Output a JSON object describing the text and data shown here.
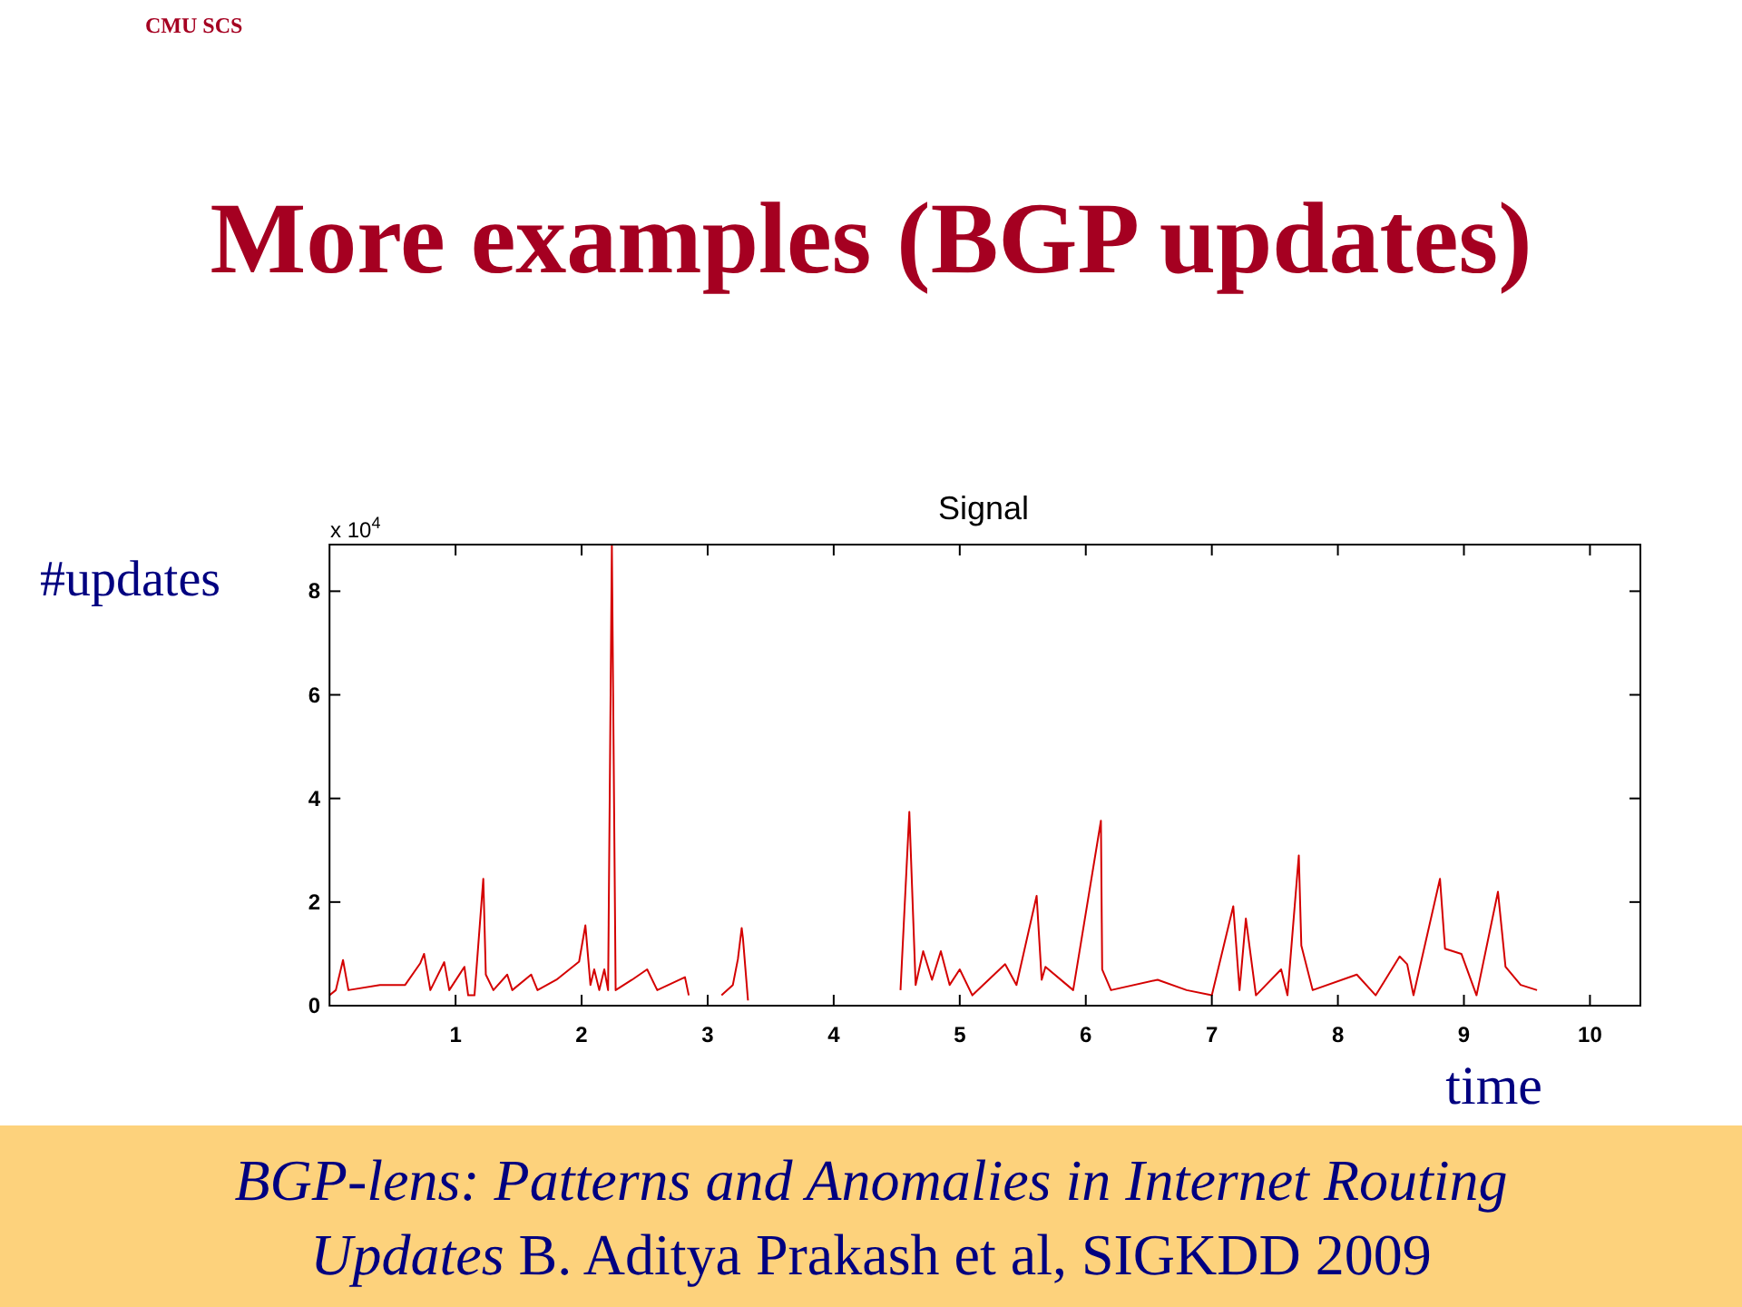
{
  "chart_data": {
    "type": "line",
    "title": "Signal",
    "subtitle": "More examples (BGP updates)",
    "xlabel": "time",
    "ylabel": "#updates",
    "x": [
      0.0,
      0.05,
      0.107,
      0.15,
      0.4,
      0.6,
      0.72,
      0.75,
      0.8,
      0.91,
      0.95,
      1.07,
      1.1,
      1.15,
      1.22,
      1.24,
      1.3,
      1.41,
      1.45,
      1.6,
      1.65,
      1.8,
      1.98,
      2.03,
      2.07,
      2.1,
      2.14,
      2.18,
      2.21,
      2.24,
      2.27,
      2.4,
      2.52,
      2.6,
      2.82,
      2.85,
      2.95,
      3.11,
      3.2,
      3.24,
      3.27,
      3.28,
      3.32,
      4.0,
      4.53,
      4.6,
      4.65,
      4.71,
      4.78,
      4.85,
      4.92,
      5.0,
      5.1,
      5.36,
      5.45,
      5.61,
      5.65,
      5.68,
      5.9,
      6.12,
      6.13,
      6.2,
      6.57,
      6.8,
      7.0,
      7.17,
      7.22,
      7.27,
      7.35,
      7.55,
      7.6,
      7.69,
      7.71,
      7.8,
      8.15,
      8.3,
      8.49,
      8.55,
      8.6,
      8.81,
      8.85,
      8.98,
      9.1,
      9.27,
      9.33,
      9.45,
      9.58
    ],
    "series": [
      {
        "color": "#d40000",
        "values": [
          0.2,
          0.3,
          0.88,
          0.3,
          0.4,
          0.4,
          0.82,
          1.0,
          0.3,
          0.84,
          0.3,
          0.75,
          0.2,
          0.2,
          2.45,
          0.6,
          0.3,
          0.6,
          0.3,
          0.6,
          0.3,
          0.5,
          0.85,
          1.55,
          0.4,
          0.7,
          0.3,
          0.7,
          0.3,
          8.9,
          0.3,
          0.5,
          0.7,
          0.3,
          0.55,
          0.2,
          null,
          0.2,
          0.4,
          0.9,
          1.5,
          1.3,
          0.1,
          null,
          0.3,
          3.74,
          0.4,
          1.05,
          0.5,
          1.05,
          0.4,
          0.7,
          0.2,
          0.8,
          0.4,
          2.12,
          0.5,
          0.75,
          0.3,
          3.57,
          0.7,
          0.3,
          0.5,
          0.3,
          0.2,
          1.92,
          0.3,
          1.68,
          0.2,
          0.7,
          0.2,
          2.9,
          1.16,
          0.3,
          0.6,
          0.2,
          0.95,
          0.8,
          0.2,
          2.45,
          1.1,
          1.0,
          0.2,
          2.2,
          0.75,
          0.4,
          0.3
        ]
      }
    ],
    "xlim": [
      0,
      10.4
    ],
    "ylim": [
      0,
      8.9
    ],
    "xticks": [
      1,
      2,
      3,
      4,
      5,
      6,
      7,
      8,
      9,
      10
    ],
    "yticks": [
      0,
      2,
      4,
      6,
      8
    ],
    "grid": false,
    "annotations": [
      "CMU SCS",
      "x 10$^{4}$",
      "BGP-lens: Patterns and Anomalies in Internet Routing Updates",
      "B. Aditya Prakash et al, SIGKDD 2009"
    ]
  }
}
